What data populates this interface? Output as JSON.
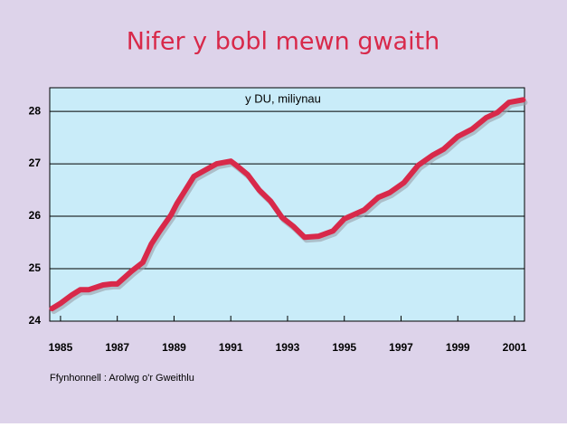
{
  "chart_data": {
    "type": "line",
    "title": "Nifer y bobl mewn gwaith",
    "subtitle": "y DU, miliynau",
    "source": "Ffynhonnell : Arolwg o'r Gweithlu",
    "x": [
      1984.7,
      1985,
      1985.4,
      1985.7,
      1986,
      1986.5,
      1986.8,
      1987,
      1987.5,
      1987.9,
      1988.2,
      1988.5,
      1988.9,
      1989.1,
      1989.4,
      1989.7,
      1990.1,
      1990.5,
      1991,
      1991.2,
      1991.6,
      1992,
      1992.4,
      1992.8,
      1993.2,
      1993.6,
      1994.1,
      1994.6,
      1995,
      1995.7,
      1996.2,
      1996.6,
      1997.1,
      1997.6,
      1998.1,
      1998.5,
      1999,
      1999.5,
      2000,
      2000.4,
      2000.8,
      2001.3
    ],
    "series": [
      {
        "color": "#d8294a",
        "values": [
          24.24,
          24.34,
          24.5,
          24.6,
          24.6,
          24.69,
          24.71,
          24.71,
          24.95,
          25.12,
          25.47,
          25.72,
          26.03,
          26.24,
          26.5,
          26.76,
          26.88,
          27.0,
          27.05,
          26.97,
          26.79,
          26.5,
          26.29,
          25.98,
          25.81,
          25.6,
          25.62,
          25.72,
          25.95,
          26.12,
          26.36,
          26.45,
          26.64,
          26.97,
          27.16,
          27.28,
          27.52,
          27.66,
          27.88,
          27.98,
          28.17,
          28.22
        ]
      }
    ],
    "xlim": [
      1984.62,
      2001.35
    ],
    "xticks": [
      1985,
      1987,
      1989,
      1991,
      1993,
      1995,
      1997,
      1999,
      2001
    ],
    "ylim": [
      24,
      28.45
    ],
    "yticks": [
      24,
      25,
      26,
      27,
      28
    ],
    "grid": true
  }
}
